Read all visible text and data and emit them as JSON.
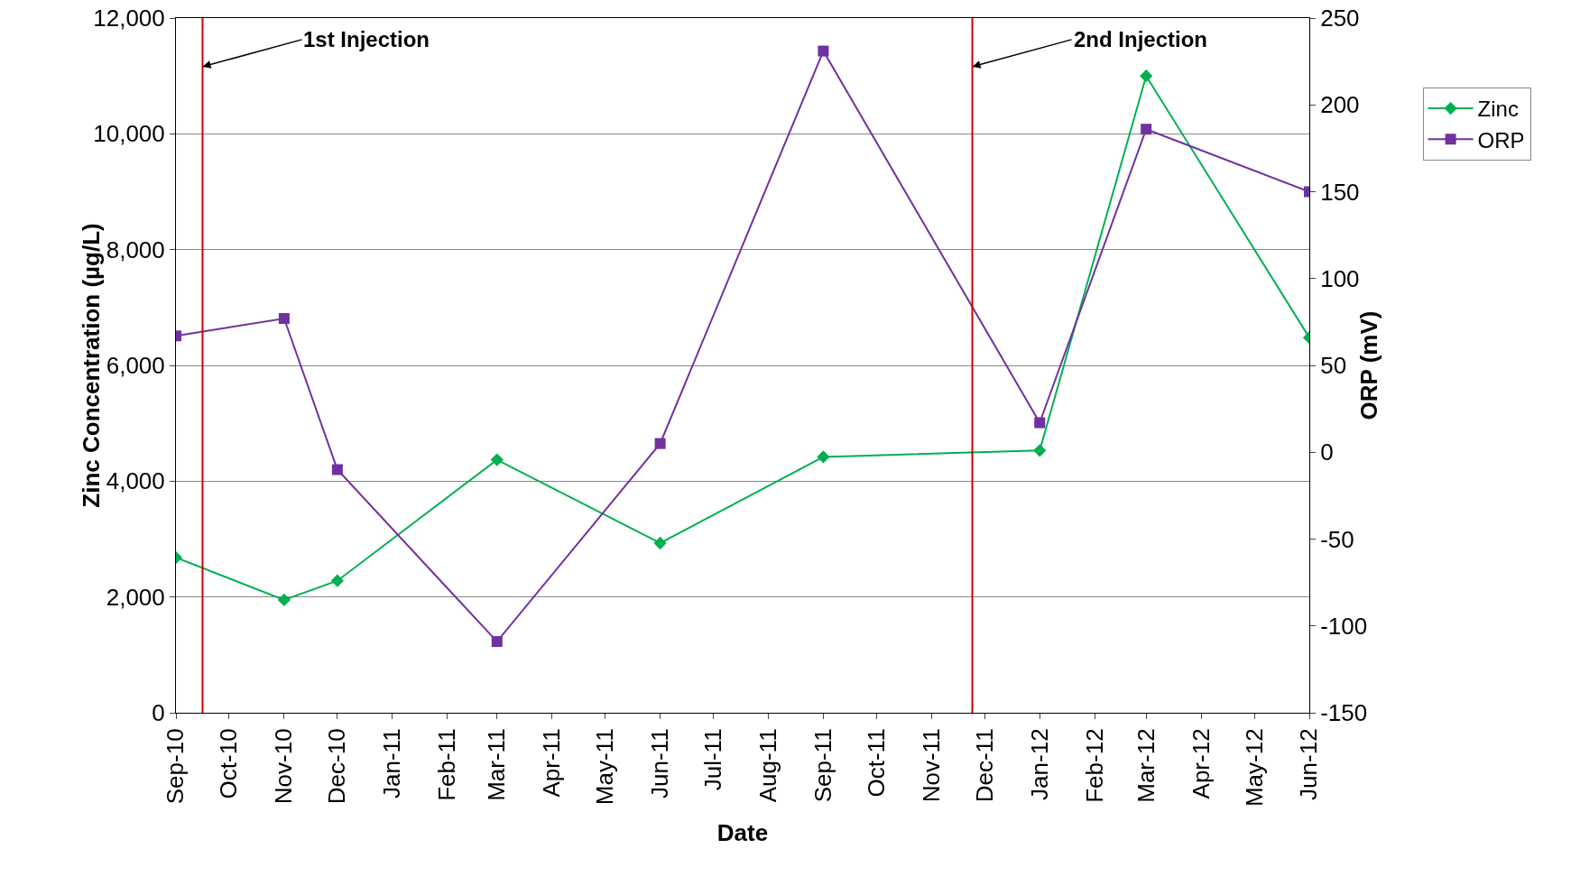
{
  "chart_data": {
    "type": "line",
    "xlabel": "Date",
    "ylabel": "Zinc Concentration (µg/L)",
    "y2label": "ORP (mV)",
    "x": [
      "2010-09",
      "2010-11",
      "2010-12",
      "2011-03",
      "2011-06",
      "2011-09",
      "2012-01",
      "2012-03",
      "2012-06"
    ],
    "series": [
      {
        "name": "Zinc",
        "color": "#00b050",
        "marker": "diamond",
        "values": [
          2680,
          1950,
          2280,
          4370,
          2930,
          4420,
          4530,
          11000,
          6480
        ]
      },
      {
        "name": "ORP",
        "color": "#7030a0",
        "marker": "square",
        "axis": "y2",
        "values": [
          67,
          77,
          -10,
          -109,
          5,
          231,
          17,
          186,
          150
        ]
      }
    ],
    "xlim": [
      "2010-09",
      "2012-06"
    ],
    "xticks": [
      {
        "value": "2010-09",
        "label": "Sep-10"
      },
      {
        "value": "2010-10",
        "label": "Oct-10"
      },
      {
        "value": "2010-11",
        "label": "Nov-10"
      },
      {
        "value": "2010-12",
        "label": "Dec-10"
      },
      {
        "value": "2011-01",
        "label": "Jan-11"
      },
      {
        "value": "2011-02",
        "label": "Feb-11"
      },
      {
        "value": "2011-03",
        "label": "Mar-11"
      },
      {
        "value": "2011-04",
        "label": "Apr-11"
      },
      {
        "value": "2011-05",
        "label": "May-11"
      },
      {
        "value": "2011-06",
        "label": "Jun-11"
      },
      {
        "value": "2011-07",
        "label": "Jul-11"
      },
      {
        "value": "2011-08",
        "label": "Aug-11"
      },
      {
        "value": "2011-09",
        "label": "Sep-11"
      },
      {
        "value": "2011-10",
        "label": "Oct-11"
      },
      {
        "value": "2011-11",
        "label": "Nov-11"
      },
      {
        "value": "2011-12",
        "label": "Dec-11"
      },
      {
        "value": "2012-01",
        "label": "Jan-12"
      },
      {
        "value": "2012-02",
        "label": "Feb-12"
      },
      {
        "value": "2012-03",
        "label": "Mar-12"
      },
      {
        "value": "2012-04",
        "label": "Apr-12"
      },
      {
        "value": "2012-05",
        "label": "May-12"
      },
      {
        "value": "2012-06",
        "label": "Jun-12"
      }
    ],
    "ylim": [
      0,
      12000
    ],
    "yticks": [
      {
        "value": 0,
        "label": "0"
      },
      {
        "value": 2000,
        "label": "2,000"
      },
      {
        "value": 4000,
        "label": "4,000"
      },
      {
        "value": 6000,
        "label": "6,000"
      },
      {
        "value": 8000,
        "label": "8,000"
      },
      {
        "value": 10000,
        "label": "10,000"
      },
      {
        "value": 12000,
        "label": "12,000"
      }
    ],
    "y2lim": [
      -150,
      250
    ],
    "y2ticks": [
      -150,
      -100,
      -50,
      0,
      50,
      100,
      150,
      200,
      250
    ],
    "ref_lines": [
      {
        "axis": "x",
        "value": "2010-09-16",
        "label": "1st Injection",
        "color": "#cc0000"
      },
      {
        "axis": "x",
        "value": "2011-11-24",
        "label": "2nd Injection",
        "color": "#cc0000"
      }
    ],
    "grid": "y",
    "legend": "right",
    "line_style": "solid"
  }
}
